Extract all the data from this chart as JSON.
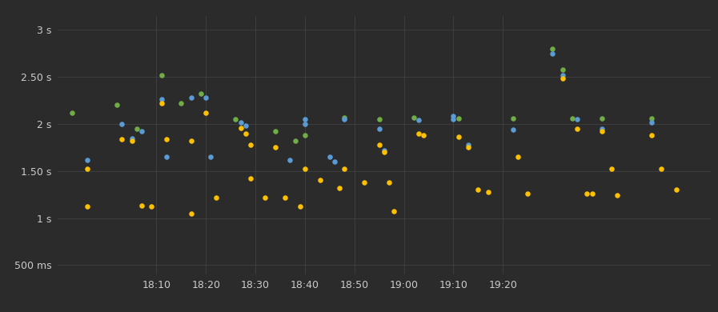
{
  "background_color": "#2b2b2b",
  "grid_color": "#4a4a4a",
  "text_color": "#cccccc",
  "colors": {
    "blue": "#5b9bd5",
    "green": "#70ad47",
    "orange": "#ffc000"
  },
  "points": [
    {
      "t": -7,
      "v": 2.12,
      "c": "green"
    },
    {
      "t": -4,
      "v": 1.62,
      "c": "blue"
    },
    {
      "t": -4,
      "v": 1.52,
      "c": "orange"
    },
    {
      "t": -4,
      "v": 1.12,
      "c": "orange"
    },
    {
      "t": 2,
      "v": 2.2,
      "c": "green"
    },
    {
      "t": 3,
      "v": 2.0,
      "c": "blue"
    },
    {
      "t": 3,
      "v": 1.84,
      "c": "orange"
    },
    {
      "t": 5,
      "v": 1.85,
      "c": "blue"
    },
    {
      "t": 5,
      "v": 1.82,
      "c": "orange"
    },
    {
      "t": 6,
      "v": 1.95,
      "c": "green"
    },
    {
      "t": 7,
      "v": 1.92,
      "c": "blue"
    },
    {
      "t": 7,
      "v": 1.13,
      "c": "orange"
    },
    {
      "t": 9,
      "v": 1.12,
      "c": "orange"
    },
    {
      "t": 11,
      "v": 2.52,
      "c": "green"
    },
    {
      "t": 11,
      "v": 2.26,
      "c": "blue"
    },
    {
      "t": 11,
      "v": 2.22,
      "c": "orange"
    },
    {
      "t": 12,
      "v": 1.65,
      "c": "blue"
    },
    {
      "t": 12,
      "v": 1.84,
      "c": "orange"
    },
    {
      "t": 15,
      "v": 2.22,
      "c": "green"
    },
    {
      "t": 17,
      "v": 2.28,
      "c": "blue"
    },
    {
      "t": 17,
      "v": 1.82,
      "c": "orange"
    },
    {
      "t": 17,
      "v": 1.05,
      "c": "orange"
    },
    {
      "t": 19,
      "v": 2.32,
      "c": "green"
    },
    {
      "t": 20,
      "v": 2.28,
      "c": "blue"
    },
    {
      "t": 20,
      "v": 2.12,
      "c": "orange"
    },
    {
      "t": 21,
      "v": 1.65,
      "c": "blue"
    },
    {
      "t": 22,
      "v": 1.22,
      "c": "orange"
    },
    {
      "t": 26,
      "v": 2.05,
      "c": "green"
    },
    {
      "t": 27,
      "v": 2.02,
      "c": "blue"
    },
    {
      "t": 27,
      "v": 1.96,
      "c": "orange"
    },
    {
      "t": 28,
      "v": 1.98,
      "c": "blue"
    },
    {
      "t": 28,
      "v": 1.9,
      "c": "orange"
    },
    {
      "t": 29,
      "v": 1.78,
      "c": "orange"
    },
    {
      "t": 29,
      "v": 1.42,
      "c": "orange"
    },
    {
      "t": 32,
      "v": 1.22,
      "c": "orange"
    },
    {
      "t": 34,
      "v": 1.92,
      "c": "green"
    },
    {
      "t": 34,
      "v": 1.75,
      "c": "orange"
    },
    {
      "t": 36,
      "v": 1.22,
      "c": "orange"
    },
    {
      "t": 37,
      "v": 1.62,
      "c": "blue"
    },
    {
      "t": 38,
      "v": 1.82,
      "c": "green"
    },
    {
      "t": 39,
      "v": 1.12,
      "c": "orange"
    },
    {
      "t": 40,
      "v": 2.05,
      "c": "blue"
    },
    {
      "t": 40,
      "v": 2.0,
      "c": "blue"
    },
    {
      "t": 40,
      "v": 1.88,
      "c": "green"
    },
    {
      "t": 40,
      "v": 1.52,
      "c": "orange"
    },
    {
      "t": 43,
      "v": 1.4,
      "c": "orange"
    },
    {
      "t": 45,
      "v": 1.65,
      "c": "blue"
    },
    {
      "t": 46,
      "v": 1.6,
      "c": "blue"
    },
    {
      "t": 47,
      "v": 1.32,
      "c": "orange"
    },
    {
      "t": 48,
      "v": 2.07,
      "c": "green"
    },
    {
      "t": 48,
      "v": 2.05,
      "c": "blue"
    },
    {
      "t": 48,
      "v": 1.52,
      "c": "orange"
    },
    {
      "t": 52,
      "v": 1.38,
      "c": "orange"
    },
    {
      "t": 55,
      "v": 2.05,
      "c": "green"
    },
    {
      "t": 55,
      "v": 1.95,
      "c": "blue"
    },
    {
      "t": 55,
      "v": 1.78,
      "c": "orange"
    },
    {
      "t": 56,
      "v": 1.72,
      "c": "blue"
    },
    {
      "t": 56,
      "v": 1.7,
      "c": "orange"
    },
    {
      "t": 57,
      "v": 1.38,
      "c": "orange"
    },
    {
      "t": 58,
      "v": 1.07,
      "c": "orange"
    },
    {
      "t": 62,
      "v": 2.07,
      "c": "green"
    },
    {
      "t": 63,
      "v": 2.04,
      "c": "blue"
    },
    {
      "t": 63,
      "v": 1.9,
      "c": "orange"
    },
    {
      "t": 64,
      "v": 1.88,
      "c": "orange"
    },
    {
      "t": 70,
      "v": 2.08,
      "c": "blue"
    },
    {
      "t": 70,
      "v": 2.05,
      "c": "blue"
    },
    {
      "t": 71,
      "v": 2.06,
      "c": "green"
    },
    {
      "t": 71,
      "v": 1.86,
      "c": "orange"
    },
    {
      "t": 73,
      "v": 1.78,
      "c": "blue"
    },
    {
      "t": 73,
      "v": 1.75,
      "c": "orange"
    },
    {
      "t": 75,
      "v": 1.3,
      "c": "orange"
    },
    {
      "t": 77,
      "v": 1.28,
      "c": "orange"
    },
    {
      "t": 82,
      "v": 2.06,
      "c": "green"
    },
    {
      "t": 82,
      "v": 1.94,
      "c": "blue"
    },
    {
      "t": 83,
      "v": 1.65,
      "c": "orange"
    },
    {
      "t": 85,
      "v": 1.26,
      "c": "orange"
    },
    {
      "t": 90,
      "v": 2.8,
      "c": "green"
    },
    {
      "t": 90,
      "v": 2.75,
      "c": "blue"
    },
    {
      "t": 92,
      "v": 2.58,
      "c": "green"
    },
    {
      "t": 92,
      "v": 2.52,
      "c": "blue"
    },
    {
      "t": 92,
      "v": 2.48,
      "c": "orange"
    },
    {
      "t": 94,
      "v": 2.06,
      "c": "green"
    },
    {
      "t": 95,
      "v": 2.05,
      "c": "blue"
    },
    {
      "t": 95,
      "v": 1.95,
      "c": "orange"
    },
    {
      "t": 97,
      "v": 1.26,
      "c": "orange"
    },
    {
      "t": 98,
      "v": 1.26,
      "c": "orange"
    },
    {
      "t": 100,
      "v": 2.06,
      "c": "green"
    },
    {
      "t": 100,
      "v": 1.95,
      "c": "blue"
    },
    {
      "t": 100,
      "v": 1.92,
      "c": "orange"
    },
    {
      "t": 102,
      "v": 1.52,
      "c": "orange"
    },
    {
      "t": 103,
      "v": 1.24,
      "c": "orange"
    },
    {
      "t": 110,
      "v": 2.06,
      "c": "green"
    },
    {
      "t": 110,
      "v": 2.02,
      "c": "blue"
    },
    {
      "t": 110,
      "v": 1.88,
      "c": "orange"
    },
    {
      "t": 112,
      "v": 1.52,
      "c": "orange"
    },
    {
      "t": 115,
      "v": 1.3,
      "c": "orange"
    }
  ],
  "ytick_labels": [
    "500 ms",
    "1 s",
    "1.50 s",
    "2 s",
    "2.50 s",
    "3 s"
  ],
  "ytick_values": [
    0.5,
    1.0,
    1.5,
    2.0,
    2.5,
    3.0
  ],
  "xtick_labels": [
    "18:10",
    "18:20",
    "18:30",
    "18:40",
    "18:50",
    "19:00",
    "19:10",
    "19:20"
  ],
  "xtick_values": [
    10,
    20,
    30,
    40,
    50,
    60,
    70,
    80
  ],
  "xlim": [
    -10,
    122
  ],
  "ylim": [
    0.4,
    3.15
  ],
  "figsize": [
    8.97,
    3.9
  ],
  "dpi": 100
}
